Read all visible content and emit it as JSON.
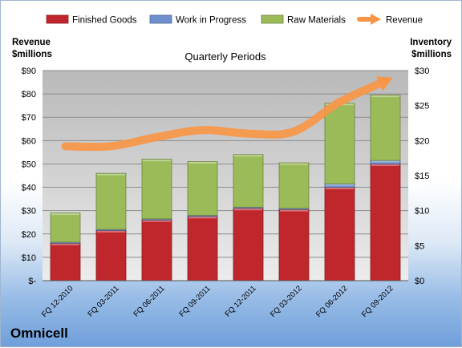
{
  "chart_data": {
    "type": "bar",
    "stacked": true,
    "title": "Quarterly Periods",
    "company": "Omnicell",
    "categories": [
      "FQ 12-2010",
      "FQ 03-2011",
      "FQ 06-2011",
      "FQ 09-2011",
      "FQ 12-2011",
      "FQ 03-2012",
      "FQ 06-2012",
      "FQ 09-2012"
    ],
    "series": [
      {
        "name": "Finished Goods",
        "axis": "left",
        "color": "#c0272d",
        "values": [
          16,
          21.5,
          26,
          27.5,
          31,
          30.5,
          40,
          50
        ]
      },
      {
        "name": "Work in Progress",
        "axis": "left",
        "color": "#6f8fcf",
        "values": [
          0.5,
          0.5,
          0.5,
          0.5,
          0.5,
          0.5,
          1.5,
          1.5
        ]
      },
      {
        "name": "Raw Materials",
        "axis": "left",
        "color": "#9bbb59",
        "values": [
          12.5,
          24,
          25.5,
          23,
          22.5,
          19.5,
          34.5,
          28
        ]
      },
      {
        "name": "Revenue",
        "type": "line",
        "axis": "right",
        "color": "#f79646",
        "values": [
          19.2,
          19.2,
          20.5,
          21.5,
          21,
          21.3,
          25.5,
          28.5
        ]
      }
    ],
    "ylabel_left": "Revenue\n$millions",
    "ylabel_right": "Inventory\n$millions",
    "ylim_left": [
      0,
      90
    ],
    "ylim_right": [
      0,
      30
    ],
    "yticks_left": [
      "$-",
      "$10",
      "$20",
      "$30",
      "$40",
      "$50",
      "$60",
      "$70",
      "$80",
      "$90"
    ],
    "yticks_right": [
      "$0",
      "$5",
      "$10",
      "$15",
      "$20",
      "$25",
      "$30"
    ],
    "legend": [
      "Finished Goods",
      "Work in Progress",
      "Raw Materials",
      "Revenue"
    ],
    "legend_position": "top",
    "grid": true
  }
}
